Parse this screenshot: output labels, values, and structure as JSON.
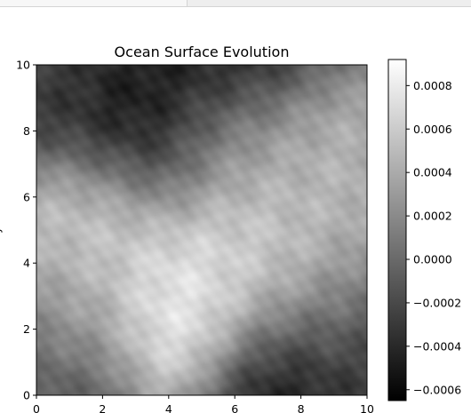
{
  "chart_data": {
    "type": "heatmap",
    "title": "Ocean Surface Evolution",
    "xlabel": "",
    "ylabel": "y",
    "xlim": [
      0,
      10
    ],
    "ylim": [
      0,
      10
    ],
    "x_ticks": [
      "0",
      "2",
      "4",
      "6",
      "8",
      "10"
    ],
    "y_ticks": [
      "0",
      "2",
      "4",
      "6",
      "8",
      "10"
    ],
    "colormap": "gray",
    "colorbar": {
      "vmin": -0.00065,
      "vmax": 0.00092,
      "ticks": [
        "0.0008",
        "0.0006",
        "0.0004",
        "0.0002",
        "0.0000",
        "−0.0002",
        "−0.0004",
        "−0.0006"
      ],
      "tick_values": [
        0.0008,
        0.0006,
        0.0004,
        0.0002,
        0.0,
        -0.0002,
        -0.0004,
        -0.0006
      ]
    },
    "field_features": [
      {
        "kind": "trough",
        "x": 3.0,
        "y": 8.0,
        "value": -0.00065
      },
      {
        "kind": "trough",
        "x": 7.5,
        "y": 0.6,
        "value": -0.0006
      },
      {
        "kind": "trough",
        "x": 5.5,
        "y": 10.0,
        "value": -0.00055
      },
      {
        "kind": "trough",
        "x": 0.3,
        "y": 9.8,
        "value": -0.0003
      },
      {
        "kind": "trough",
        "x": 0.3,
        "y": 0.3,
        "value": -0.0002
      },
      {
        "kind": "trough",
        "x": 10.0,
        "y": 1.5,
        "value": -0.0003
      },
      {
        "kind": "crest",
        "x": 4.5,
        "y": 2.5,
        "value": 0.00092
      },
      {
        "kind": "crest",
        "x": 2.0,
        "y": 5.5,
        "value": 0.0007
      },
      {
        "kind": "crest",
        "x": 6.5,
        "y": 4.3,
        "value": 0.0007
      },
      {
        "kind": "crest",
        "x": 9.0,
        "y": 6.5,
        "value": 0.0005
      },
      {
        "kind": "crest",
        "x": 6.0,
        "y": 7.5,
        "value": 0.0004
      },
      {
        "kind": "crest",
        "x": 1.0,
        "y": 2.5,
        "value": 0.0004
      },
      {
        "kind": "crest",
        "x": 8.5,
        "y": 3.0,
        "value": 0.0004
      }
    ],
    "background_value": 2e-05
  }
}
